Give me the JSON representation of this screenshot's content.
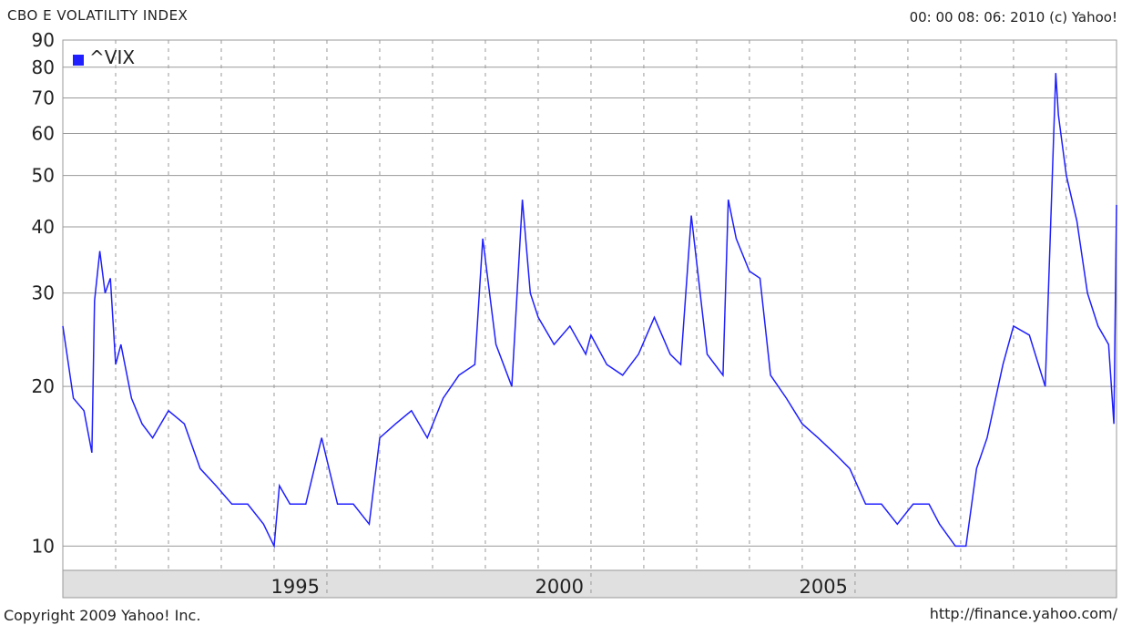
{
  "header": {
    "title": "CBO E VOLATILITY INDEX",
    "timestamp": "00: 00 08: 06: 2010 (c) Yahoo!"
  },
  "footer": {
    "copyright": "Copyright 2009 Yahoo! Inc.",
    "url": "http://finance.yahoo.com/"
  },
  "colors": {
    "series": "#1f1fff",
    "grid": "#999999",
    "axis_band": "#e0e0e0"
  },
  "chart_data": {
    "type": "line",
    "title": "CBO E VOLATILITY INDEX",
    "xlabel": "",
    "ylabel": "",
    "y_scale": "log",
    "xlim": [
      1990.0,
      2009.95
    ],
    "ylim": [
      9,
      90
    ],
    "x_ticks": [
      1995,
      2000,
      2005
    ],
    "x_tick_labels": [
      "1995",
      "2000",
      "2005"
    ],
    "y_ticks": [
      10,
      20,
      30,
      40,
      50,
      60,
      70,
      80,
      90
    ],
    "y_tick_labels": [
      "10",
      "20",
      "30",
      "40",
      "50",
      "60",
      "70",
      "80",
      "90"
    ],
    "grid": true,
    "legend": {
      "position": "top-left",
      "entries": [
        "^VIX"
      ]
    },
    "series": [
      {
        "name": "^VIX",
        "x": [
          1990.0,
          1990.2,
          1990.4,
          1990.55,
          1990.6,
          1990.7,
          1990.8,
          1990.9,
          1991.0,
          1991.1,
          1991.3,
          1991.5,
          1991.7,
          1992.0,
          1992.3,
          1992.6,
          1992.9,
          1993.2,
          1993.5,
          1993.8,
          1994.0,
          1994.1,
          1994.3,
          1994.6,
          1994.9,
          1995.2,
          1995.5,
          1995.8,
          1996.0,
          1996.3,
          1996.6,
          1996.9,
          1997.2,
          1997.5,
          1997.8,
          1997.95,
          1998.2,
          1998.5,
          1998.7,
          1998.85,
          1999.0,
          1999.3,
          1999.6,
          1999.9,
          2000.0,
          2000.3,
          2000.6,
          2000.9,
          2001.2,
          2001.5,
          2001.7,
          2001.9,
          2002.2,
          2002.5,
          2002.6,
          2002.75,
          2003.0,
          2003.2,
          2003.4,
          2003.7,
          2004.0,
          2004.3,
          2004.6,
          2004.9,
          2005.2,
          2005.5,
          2005.8,
          2006.1,
          2006.4,
          2006.6,
          2006.9,
          2007.1,
          2007.3,
          2007.5,
          2007.8,
          2008.0,
          2008.3,
          2008.6,
          2008.8,
          2008.85,
          2009.0,
          2009.2,
          2009.4,
          2009.6,
          2009.8,
          2009.9,
          2009.95
        ],
        "values": [
          26,
          19,
          18,
          15,
          29,
          36,
          30,
          32,
          22,
          24,
          19,
          17,
          16,
          18,
          17,
          14,
          13,
          12,
          12,
          11,
          10,
          13,
          12,
          12,
          16,
          12,
          12,
          11,
          16,
          17,
          18,
          16,
          19,
          21,
          22,
          38,
          24,
          20,
          45,
          30,
          27,
          24,
          26,
          23,
          25,
          22,
          21,
          23,
          27,
          23,
          22,
          42,
          23,
          21,
          45,
          38,
          33,
          32,
          21,
          19,
          17,
          16,
          15,
          14,
          12,
          12,
          11,
          12,
          12,
          11,
          10,
          10,
          14,
          16,
          22,
          26,
          25,
          20,
          78,
          65,
          50,
          41,
          30,
          26,
          24,
          17,
          44
        ]
      }
    ]
  }
}
